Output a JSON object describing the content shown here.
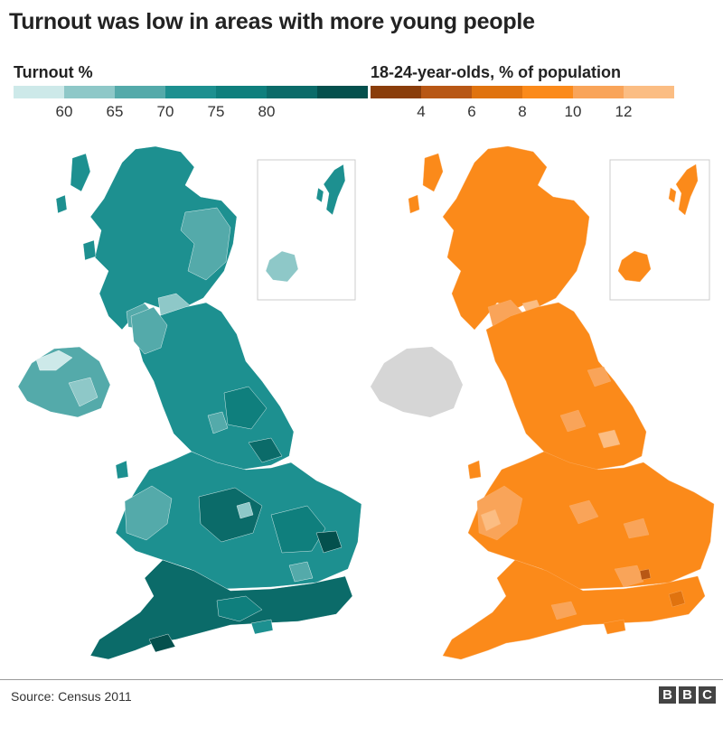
{
  "title": "Turnout was low in areas with more young people",
  "colors": {
    "turnout_ramp": [
      "#cde9e9",
      "#8ec8c8",
      "#54aaaa",
      "#1d9090",
      "#0f7f7d",
      "#0b6b69",
      "#04504d"
    ],
    "young_ramp": [
      "#8a3d0a",
      "#b85715",
      "#e0730f",
      "#fb8a1a",
      "#f9a459",
      "#fbbd83",
      "#fdd9b8"
    ],
    "no_data": "#d6d6d6",
    "inset_border": "#cccccc"
  },
  "legends": {
    "turnout": {
      "title": "Turnout %",
      "ticks": [
        "60",
        "65",
        "70",
        "75",
        "80"
      ]
    },
    "young": {
      "title": "18-24-year-olds, % of population",
      "ticks": [
        "4",
        "6",
        "8",
        "10",
        "12"
      ]
    }
  },
  "maps": {
    "turnout": {
      "metric": "Turnout %",
      "main_fill_level": "high",
      "inset": "Shetland / Orkney"
    },
    "young": {
      "metric": "18-24-year-olds, % of population",
      "main_fill_level": "medium",
      "northern_ireland": "no data"
    }
  },
  "footer": {
    "source": "Source: Census 2011",
    "logo_letters": [
      "B",
      "B",
      "C"
    ]
  }
}
